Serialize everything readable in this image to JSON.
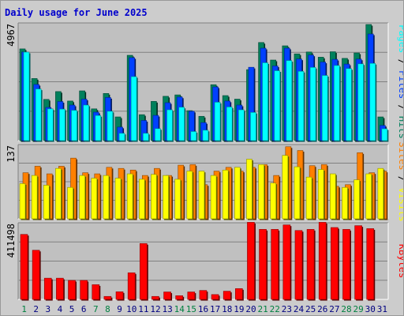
{
  "title": "Daily usage for June 2025",
  "colors": {
    "hits": "#00805c",
    "files": "#0040ff",
    "pages": "#00ffff",
    "visits": "#ff8000",
    "sites": "#ffff00",
    "kbytes": "#ff0000",
    "weekend_label": "#008040",
    "weekday_label": "#000080"
  },
  "chart_data": [
    {
      "type": "bar",
      "name": "requests-panel",
      "ymax_label": "4967",
      "ylim": [
        0,
        4967
      ],
      "legend": [
        "Pages",
        "Files",
        "Hits"
      ],
      "legend_sep": "/",
      "categories": [
        "1",
        "2",
        "3",
        "4",
        "5",
        "6",
        "7",
        "8",
        "9",
        "10",
        "11",
        "12",
        "13",
        "14",
        "15",
        "16",
        "17",
        "18",
        "19",
        "20",
        "21",
        "22",
        "23",
        "24",
        "25",
        "26",
        "27",
        "28",
        "29",
        "30",
        "31"
      ],
      "series": [
        {
          "name": "Hits",
          "key": "hits",
          "values": [
            3870,
            2620,
            1740,
            2070,
            1670,
            2100,
            1340,
            1990,
            1000,
            3600,
            1095,
            1655,
            1870,
            1930,
            1265,
            1025,
            2360,
            1900,
            1750,
            2995,
            4140,
            3400,
            4000,
            3660,
            3740,
            3520,
            3750,
            3470,
            3700,
            4900,
            1000
          ]
        },
        {
          "name": "Files",
          "key": "files",
          "values": [
            3740,
            2370,
            1400,
            1650,
            1500,
            1750,
            1200,
            1820,
            570,
            3500,
            850,
            1065,
            1600,
            1840,
            1240,
            760,
            2265,
            1670,
            1500,
            3095,
            3900,
            3150,
            3900,
            3445,
            3610,
            3315,
            3430,
            3230,
            3440,
            4500,
            640
          ]
        },
        {
          "name": "Pages",
          "key": "pages",
          "values": [
            3735,
            2180,
            1340,
            1330,
            1280,
            1500,
            1060,
            1240,
            310,
            2700,
            310,
            505,
            1300,
            1410,
            385,
            440,
            1620,
            1420,
            1300,
            1190,
            3285,
            2950,
            3380,
            2925,
            3090,
            2750,
            3170,
            3040,
            3240,
            3260,
            500
          ]
        }
      ]
    },
    {
      "type": "bar",
      "name": "visits-panel",
      "ymax_label": "137",
      "ylim": [
        0,
        137
      ],
      "legend": [
        "Sites",
        "Visits"
      ],
      "legend_sep": "/",
      "categories": [
        "1",
        "2",
        "3",
        "4",
        "5",
        "6",
        "7",
        "8",
        "9",
        "10",
        "11",
        "12",
        "13",
        "14",
        "15",
        "16",
        "17",
        "18",
        "19",
        "20",
        "21",
        "22",
        "23",
        "24",
        "25",
        "26",
        "27",
        "28",
        "29",
        "30",
        "31"
      ],
      "series": [
        {
          "name": "Visits",
          "key": "visits",
          "values": [
            85,
            97,
            83,
            97,
            112,
            85,
            83,
            95,
            93,
            90,
            80,
            93,
            80,
            99,
            100,
            63,
            88,
            95,
            88,
            95,
            100,
            80,
            133,
            126,
            98,
            100,
            60,
            63,
            122,
            85,
            88
          ]
        },
        {
          "name": "Sites",
          "key": "sites",
          "values": [
            65,
            80,
            62,
            93,
            58,
            80,
            75,
            80,
            75,
            83,
            73,
            82,
            80,
            73,
            88,
            88,
            80,
            90,
            95,
            110,
            100,
            66,
            117,
            96,
            77,
            91,
            83,
            58,
            72,
            83,
            93
          ]
        }
      ]
    },
    {
      "type": "bar",
      "name": "kbytes-panel",
      "ymax_label": "411498",
      "ylim": [
        0,
        411498
      ],
      "legend": [
        "KBytes"
      ],
      "categories": [
        "1",
        "2",
        "3",
        "4",
        "5",
        "6",
        "7",
        "8",
        "9",
        "10",
        "11",
        "12",
        "13",
        "14",
        "15",
        "16",
        "17",
        "18",
        "19",
        "20",
        "21",
        "22",
        "23",
        "24",
        "25",
        "26",
        "27",
        "28",
        "29",
        "30",
        "31"
      ],
      "series": [
        {
          "name": "KBytes",
          "key": "kbytes",
          "values": [
            349000,
            264000,
            114000,
            114000,
            102000,
            102000,
            79000,
            16000,
            41000,
            143000,
            300000,
            16000,
            40000,
            20000,
            40000,
            48000,
            26000,
            44000,
            58000,
            414000,
            376000,
            376000,
            400000,
            370000,
            376000,
            414000,
            386000,
            376000,
            396000,
            380000,
            0
          ]
        }
      ]
    }
  ],
  "x_labels": {
    "days": [
      "1",
      "2",
      "3",
      "4",
      "5",
      "6",
      "7",
      "8",
      "9",
      "10",
      "11",
      "12",
      "13",
      "14",
      "15",
      "16",
      "17",
      "18",
      "19",
      "20",
      "21",
      "22",
      "23",
      "24",
      "25",
      "26",
      "27",
      "28",
      "29",
      "30",
      "31"
    ],
    "weekend_days": [
      "1",
      "7",
      "8",
      "14",
      "15",
      "21",
      "22",
      "28",
      "29"
    ]
  }
}
